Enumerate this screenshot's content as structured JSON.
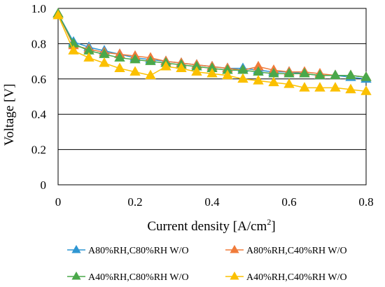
{
  "chart_data": {
    "type": "line",
    "title": "",
    "xlabel": "Current density [A/cm",
    "xlabel_sup": "2",
    "xlabel_end": "]",
    "ylabel": "Voltage [V]",
    "xlim": [
      0,
      0.8
    ],
    "ylim": [
      0,
      1.0
    ],
    "x_ticks": [
      "0",
      "0.2",
      "0.4",
      "0.6",
      "0.8"
    ],
    "y_ticks": [
      "0",
      "0.2",
      "0.4",
      "0.6",
      "0.8",
      "1.0"
    ],
    "grid": "horizontal",
    "legend_position": "bottom",
    "series": [
      {
        "name": "A80%RH,C80%RH W/O",
        "color": "#2e96d2",
        "marker": "triangle-up",
        "x": [
          0,
          0.04,
          0.08,
          0.12,
          0.16,
          0.2,
          0.24,
          0.28,
          0.32,
          0.36,
          0.4,
          0.44,
          0.48,
          0.52,
          0.56,
          0.6,
          0.64,
          0.68,
          0.72,
          0.76,
          0.8
        ],
        "y": [
          0.97,
          0.81,
          0.78,
          0.76,
          0.74,
          0.72,
          0.71,
          0.7,
          0.69,
          0.68,
          0.67,
          0.66,
          0.66,
          0.65,
          0.64,
          0.64,
          0.63,
          0.62,
          0.62,
          0.61,
          0.6
        ]
      },
      {
        "name": "A80%RH,C40%RH W/O",
        "color": "#f07b3a",
        "marker": "triangle-up",
        "x": [
          0,
          0.04,
          0.08,
          0.12,
          0.16,
          0.2,
          0.24,
          0.28,
          0.32,
          0.36,
          0.4,
          0.44,
          0.48,
          0.52,
          0.56,
          0.6,
          0.64,
          0.68,
          0.72,
          0.76,
          0.8
        ],
        "y": [
          0.97,
          0.79,
          0.77,
          0.75,
          0.74,
          0.73,
          0.72,
          0.7,
          0.69,
          0.68,
          0.67,
          0.66,
          0.65,
          0.67,
          0.65,
          0.64,
          0.64,
          0.63,
          0.62,
          0.62,
          0.61
        ]
      },
      {
        "name": "A40%RH,C80%RH W/O",
        "color": "#4aa84a",
        "marker": "triangle-up",
        "x": [
          0,
          0.04,
          0.08,
          0.12,
          0.16,
          0.2,
          0.24,
          0.28,
          0.32,
          0.36,
          0.4,
          0.44,
          0.48,
          0.52,
          0.56,
          0.6,
          0.64,
          0.68,
          0.72,
          0.76,
          0.8
        ],
        "y": [
          0.97,
          0.8,
          0.76,
          0.74,
          0.72,
          0.71,
          0.7,
          0.69,
          0.68,
          0.67,
          0.66,
          0.65,
          0.65,
          0.64,
          0.63,
          0.63,
          0.63,
          0.62,
          0.62,
          0.62,
          0.61
        ]
      },
      {
        "name": "A40%RH,C40%RH W/O",
        "color": "#fbc000",
        "marker": "triangle-up",
        "x": [
          0,
          0.04,
          0.08,
          0.12,
          0.16,
          0.2,
          0.24,
          0.28,
          0.32,
          0.36,
          0.4,
          0.44,
          0.48,
          0.52,
          0.56,
          0.6,
          0.64,
          0.68,
          0.72,
          0.76,
          0.8
        ],
        "y": [
          0.96,
          0.76,
          0.72,
          0.69,
          0.66,
          0.64,
          0.62,
          0.67,
          0.66,
          0.64,
          0.63,
          0.62,
          0.6,
          0.59,
          0.58,
          0.57,
          0.55,
          0.55,
          0.55,
          0.54,
          0.53
        ]
      }
    ]
  }
}
